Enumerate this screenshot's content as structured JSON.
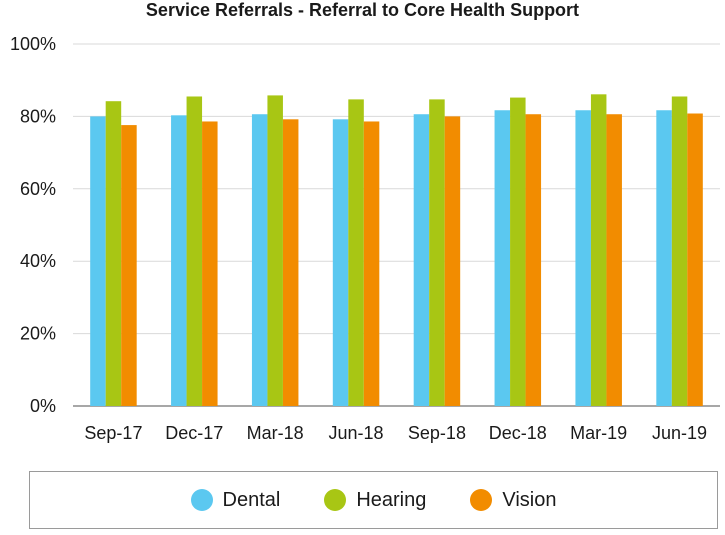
{
  "chart_data": {
    "type": "bar",
    "title": "Service Referrals - Referral to Core Health Support",
    "xlabel": "",
    "ylabel": "",
    "categories": [
      "Sep-17",
      "Dec-17",
      "Mar-18",
      "Jun-18",
      "Sep-18",
      "Dec-18",
      "Mar-19",
      "Jun-19"
    ],
    "series": [
      {
        "name": "Dental",
        "color": "#5bc8f0",
        "values": [
          80.0,
          80.3,
          80.6,
          79.2,
          80.6,
          81.7,
          81.7,
          81.7
        ]
      },
      {
        "name": "Hearing",
        "color": "#a8c614",
        "values": [
          84.2,
          85.5,
          85.8,
          84.7,
          84.7,
          85.2,
          86.1,
          85.5
        ]
      },
      {
        "name": "Vision",
        "color": "#f28c00",
        "values": [
          77.6,
          78.6,
          79.2,
          78.6,
          80.0,
          80.6,
          80.6,
          80.8
        ]
      }
    ],
    "ylim": [
      0,
      100
    ],
    "yticks": [
      0,
      20,
      40,
      60,
      80,
      100
    ],
    "ytick_labels": [
      "0%",
      "20%",
      "40%",
      "60%",
      "80%",
      "100%"
    ],
    "grid": true,
    "legend": "bottom"
  }
}
